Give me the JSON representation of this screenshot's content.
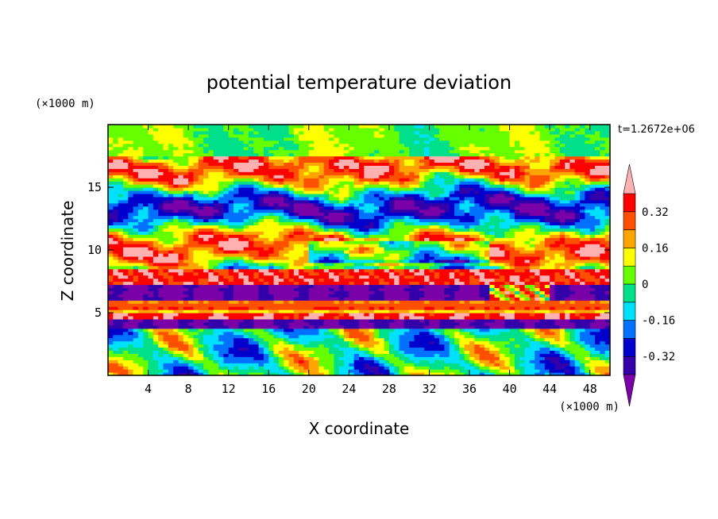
{
  "chart_data": {
    "type": "heatmap",
    "title": "potential temperature deviation",
    "xlabel": "X coordinate",
    "ylabel": "Z coordinate",
    "x_unit": "(×1000 m)",
    "y_unit": "(×1000 m)",
    "time_label": "t=1.2672e+06",
    "x_range": [
      0,
      50
    ],
    "y_range": [
      0,
      20
    ],
    "x_ticks": [
      4,
      8,
      12,
      16,
      20,
      24,
      28,
      32,
      36,
      40,
      44,
      48
    ],
    "y_ticks": [
      5,
      10,
      15
    ],
    "colorbar": {
      "levels": [
        -0.4,
        -0.32,
        -0.24,
        -0.16,
        -0.08,
        0,
        0.08,
        0.16,
        0.24,
        0.32,
        0.4
      ],
      "labels": [
        "-0.32",
        "-0.16",
        "0",
        "0.16",
        "0.32"
      ],
      "label_values": [
        -0.32,
        -0.16,
        0,
        0.16,
        0.32
      ],
      "colors": [
        "#7a00a8",
        "#3300aa",
        "#0000cc",
        "#0070ff",
        "#00e0ff",
        "#00e08a",
        "#66ff00",
        "#ffff00",
        "#ffa500",
        "#ff5000",
        "#ff0000",
        "#ffb0b0"
      ]
    }
  }
}
